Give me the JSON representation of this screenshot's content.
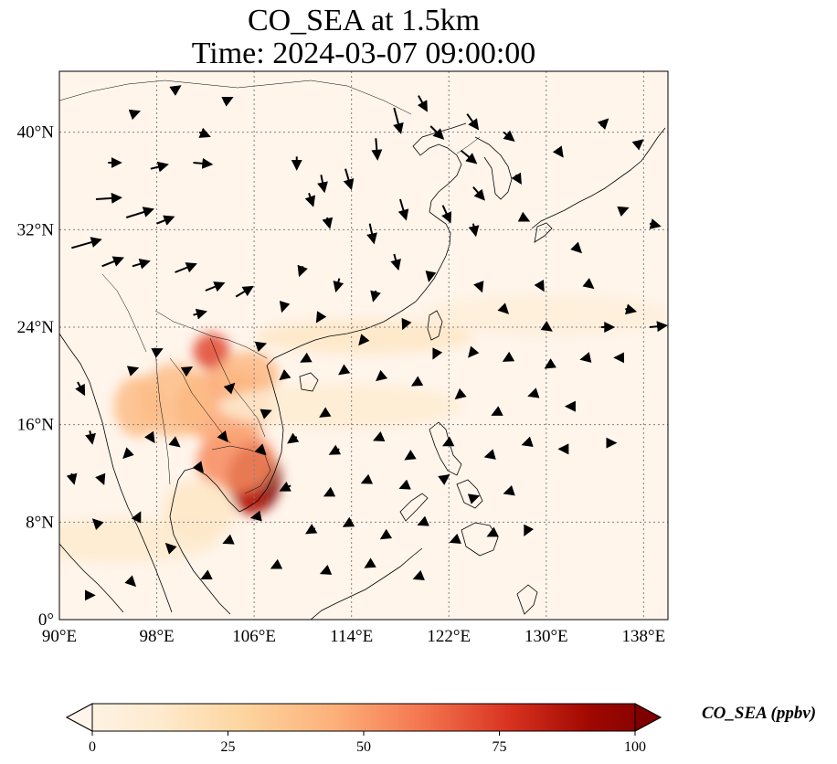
{
  "title": {
    "line1": "CO_SEA at 1.5km",
    "line2": "Time: 2024-03-07 09:00:00"
  },
  "map": {
    "projection": "PlateCarree",
    "lon_range": [
      90,
      140
    ],
    "lat_range": [
      0,
      45
    ],
    "x_ticks": [
      {
        "value": 90,
        "label": "90°E"
      },
      {
        "value": 98,
        "label": "98°E"
      },
      {
        "value": 106,
        "label": "106°E"
      },
      {
        "value": 114,
        "label": "114°E"
      },
      {
        "value": 122,
        "label": "122°E"
      },
      {
        "value": 130,
        "label": "130°E"
      },
      {
        "value": 138,
        "label": "138°E"
      }
    ],
    "y_ticks": [
      {
        "value": 0,
        "label": "0°"
      },
      {
        "value": 8,
        "label": "8°N"
      },
      {
        "value": 16,
        "label": "16°N"
      },
      {
        "value": 24,
        "label": "24°N"
      },
      {
        "value": 32,
        "label": "32°N"
      },
      {
        "value": 40,
        "label": "40°N"
      }
    ],
    "gridlines": "dotted grey",
    "background_color": "#fff5eb",
    "co_plumes": [
      {
        "name": "southern-vietnam-cambodia-core",
        "lon": 106.0,
        "lat": 11.5,
        "rx": 2.2,
        "ry": 2.8,
        "ppbv": 100
      },
      {
        "name": "mekong-delta",
        "lon": 105.6,
        "lat": 9.8,
        "rx": 1.2,
        "ry": 1.2,
        "ppbv": 80
      },
      {
        "name": "cambodia",
        "lon": 104.5,
        "lat": 13.0,
        "rx": 3.2,
        "ry": 2.6,
        "ppbv": 55
      },
      {
        "name": "laos-central",
        "lon": 103.5,
        "lat": 17.5,
        "rx": 4.0,
        "ry": 3.0,
        "ppbv": 48
      },
      {
        "name": "northern-laos",
        "lon": 102.5,
        "lat": 22.0,
        "rx": 1.5,
        "ry": 1.5,
        "ppbv": 70
      },
      {
        "name": "northern-thailand",
        "lon": 99.5,
        "lat": 18.0,
        "rx": 3.0,
        "ry": 3.0,
        "ppbv": 40
      },
      {
        "name": "myanmar-east",
        "lon": 96.5,
        "lat": 17.5,
        "rx": 2.0,
        "ry": 2.5,
        "ppbv": 40
      },
      {
        "name": "vietnam-north",
        "lon": 105.5,
        "lat": 20.0,
        "rx": 2.5,
        "ry": 2.0,
        "ppbv": 42
      },
      {
        "name": "south-china-coast-band",
        "lon": 115.0,
        "lat": 23.2,
        "rx": 9.0,
        "ry": 1.4,
        "ppbv": 18
      },
      {
        "name": "west-pacific-band",
        "lon": 130.0,
        "lat": 25.0,
        "rx": 10.0,
        "ry": 1.6,
        "ppbv": 10
      },
      {
        "name": "south-china-sea-band",
        "lon": 113.0,
        "lat": 17.5,
        "rx": 10.0,
        "ry": 1.8,
        "ppbv": 14
      },
      {
        "name": "andaman-band",
        "lon": 95.0,
        "lat": 6.5,
        "rx": 8.0,
        "ry": 1.8,
        "ppbv": 15
      },
      {
        "name": "gulf-of-thailand",
        "lon": 101.5,
        "lat": 9.0,
        "rx": 3.0,
        "ry": 2.5,
        "ppbv": 18
      }
    ],
    "wind_vectors": [
      {
        "lon": 91.0,
        "lat": 30.5,
        "u": 3.5,
        "v": 1.0
      },
      {
        "lon": 93.0,
        "lat": 34.5,
        "u": 3.0,
        "v": 0.2
      },
      {
        "lon": 95.5,
        "lat": 33.0,
        "u": 3.2,
        "v": 1.0
      },
      {
        "lon": 98.0,
        "lat": 32.5,
        "u": 2.0,
        "v": 0.8
      },
      {
        "lon": 93.5,
        "lat": 29.0,
        "u": 2.5,
        "v": 1.0
      },
      {
        "lon": 96.0,
        "lat": 29.0,
        "u": 2.0,
        "v": 0.6
      },
      {
        "lon": 99.5,
        "lat": 28.5,
        "u": 2.5,
        "v": 1.0
      },
      {
        "lon": 102.0,
        "lat": 27.0,
        "u": 2.2,
        "v": 0.9
      },
      {
        "lon": 104.5,
        "lat": 26.5,
        "u": 2.0,
        "v": 1.2
      },
      {
        "lon": 101.0,
        "lat": 25.0,
        "u": 1.5,
        "v": 0.4
      },
      {
        "lon": 94.0,
        "lat": 37.5,
        "u": 1.5,
        "v": 0.0
      },
      {
        "lon": 97.5,
        "lat": 37.0,
        "u": 2.0,
        "v": 0.5
      },
      {
        "lon": 101.0,
        "lat": 37.5,
        "u": 2.2,
        "v": -0.2
      },
      {
        "lon": 101.5,
        "lat": 40.0,
        "u": 1.2,
        "v": -0.5
      },
      {
        "lon": 96.0,
        "lat": 41.5,
        "u": 0.8,
        "v": 0.3
      },
      {
        "lon": 99.5,
        "lat": 43.5,
        "u": 0.6,
        "v": 0.4
      },
      {
        "lon": 103.5,
        "lat": 42.5,
        "u": 1.0,
        "v": 0.5
      },
      {
        "lon": 109.5,
        "lat": 38.0,
        "u": 0.0,
        "v": -1.5
      },
      {
        "lon": 111.5,
        "lat": 36.5,
        "u": 0.4,
        "v": -2.0
      },
      {
        "lon": 113.5,
        "lat": 37.0,
        "u": 0.7,
        "v": -2.4
      },
      {
        "lon": 116.0,
        "lat": 39.5,
        "u": 0.2,
        "v": -2.5
      },
      {
        "lon": 117.5,
        "lat": 42.0,
        "u": 0.8,
        "v": -3.0
      },
      {
        "lon": 119.5,
        "lat": 43.0,
        "u": 1.0,
        "v": -1.8
      },
      {
        "lon": 120.5,
        "lat": 40.5,
        "u": 1.5,
        "v": -1.5
      },
      {
        "lon": 123.0,
        "lat": 38.5,
        "u": 1.8,
        "v": -1.5
      },
      {
        "lon": 123.5,
        "lat": 41.5,
        "u": 1.3,
        "v": -1.8
      },
      {
        "lon": 126.5,
        "lat": 40.0,
        "u": 1.2,
        "v": -1.0
      },
      {
        "lon": 118.0,
        "lat": 34.5,
        "u": 0.7,
        "v": -2.4
      },
      {
        "lon": 115.5,
        "lat": 32.5,
        "u": 0.5,
        "v": -2.3
      },
      {
        "lon": 112.0,
        "lat": 33.0,
        "u": 0.3,
        "v": -1.2
      },
      {
        "lon": 110.5,
        "lat": 35.0,
        "u": 0.5,
        "v": -1.5
      },
      {
        "lon": 117.5,
        "lat": 30.0,
        "u": 0.5,
        "v": -1.8
      },
      {
        "lon": 121.5,
        "lat": 34.0,
        "u": 0.9,
        "v": -2.0
      },
      {
        "lon": 124.0,
        "lat": 35.5,
        "u": 1.3,
        "v": -1.5
      },
      {
        "lon": 124.0,
        "lat": 32.5,
        "u": 0.3,
        "v": -1.4
      },
      {
        "lon": 127.5,
        "lat": 36.5,
        "u": 0.6,
        "v": -1.0
      },
      {
        "lon": 131.0,
        "lat": 38.5,
        "u": 0.5,
        "v": -0.7
      },
      {
        "lon": 134.5,
        "lat": 40.5,
        "u": 0.8,
        "v": 0.8
      },
      {
        "lon": 137.5,
        "lat": 39.0,
        "u": 0.6,
        "v": 0.5
      },
      {
        "lon": 136.0,
        "lat": 33.5,
        "u": 1.0,
        "v": 0.4
      },
      {
        "lon": 138.5,
        "lat": 32.5,
        "u": 1.2,
        "v": -0.3
      },
      {
        "lon": 128.0,
        "lat": 33.0,
        "u": 0.8,
        "v": -0.4
      },
      {
        "lon": 132.5,
        "lat": 30.5,
        "u": 0.5,
        "v": -0.5
      },
      {
        "lon": 129.5,
        "lat": 27.5,
        "u": 0.4,
        "v": -0.7
      },
      {
        "lon": 133.5,
        "lat": 27.5,
        "u": 0.5,
        "v": -0.4
      },
      {
        "lon": 136.5,
        "lat": 25.5,
        "u": 1.2,
        "v": -0.3
      },
      {
        "lon": 138.5,
        "lat": 24.0,
        "u": 2.0,
        "v": 0.2
      },
      {
        "lon": 134.5,
        "lat": 24.0,
        "u": 1.5,
        "v": 0.0
      },
      {
        "lon": 130.0,
        "lat": 24.0,
        "u": 0.6,
        "v": -0.4
      },
      {
        "lon": 126.5,
        "lat": 25.5,
        "u": 0.5,
        "v": -0.5
      },
      {
        "lon": 124.5,
        "lat": 27.5,
        "u": 0.3,
        "v": -0.8
      },
      {
        "lon": 120.5,
        "lat": 28.5,
        "u": -0.2,
        "v": -1.0
      },
      {
        "lon": 116.0,
        "lat": 27.0,
        "u": -0.3,
        "v": -1.2
      },
      {
        "lon": 113.0,
        "lat": 28.0,
        "u": -0.4,
        "v": -1.5
      },
      {
        "lon": 110.0,
        "lat": 29.0,
        "u": -0.4,
        "v": -1.1
      },
      {
        "lon": 108.5,
        "lat": 26.0,
        "u": -0.3,
        "v": -1.0
      },
      {
        "lon": 111.5,
        "lat": 25.0,
        "u": -0.5,
        "v": -0.8
      },
      {
        "lon": 115.0,
        "lat": 23.0,
        "u": -0.5,
        "v": -0.6
      },
      {
        "lon": 118.5,
        "lat": 24.5,
        "u": -0.4,
        "v": -0.9
      },
      {
        "lon": 121.0,
        "lat": 22.0,
        "u": -0.4,
        "v": -0.8
      },
      {
        "lon": 124.0,
        "lat": 22.0,
        "u": -0.5,
        "v": -0.6
      },
      {
        "lon": 127.0,
        "lat": 21.5,
        "u": -0.7,
        "v": -0.4
      },
      {
        "lon": 130.5,
        "lat": 21.0,
        "u": -0.8,
        "v": -0.5
      },
      {
        "lon": 133.5,
        "lat": 21.5,
        "u": -0.9,
        "v": -0.2
      },
      {
        "lon": 136.0,
        "lat": 21.5,
        "u": -0.5,
        "v": 0.0
      },
      {
        "lon": 129.0,
        "lat": 18.5,
        "u": -0.6,
        "v": -0.2
      },
      {
        "lon": 132.0,
        "lat": 17.5,
        "u": -0.5,
        "v": 0.0
      },
      {
        "lon": 126.0,
        "lat": 17.0,
        "u": -0.6,
        "v": -0.3
      },
      {
        "lon": 123.0,
        "lat": 18.5,
        "u": -0.6,
        "v": -0.5
      },
      {
        "lon": 119.5,
        "lat": 19.5,
        "u": -0.7,
        "v": -0.4
      },
      {
        "lon": 116.5,
        "lat": 20.0,
        "u": -0.6,
        "v": -0.5
      },
      {
        "lon": 113.5,
        "lat": 20.5,
        "u": -0.7,
        "v": -0.5
      },
      {
        "lon": 110.5,
        "lat": 21.5,
        "u": -0.9,
        "v": -0.5
      },
      {
        "lon": 112.0,
        "lat": 17.0,
        "u": -0.8,
        "v": -0.5
      },
      {
        "lon": 109.5,
        "lat": 15.0,
        "u": -1.0,
        "v": -0.7
      },
      {
        "lon": 113.0,
        "lat": 14.0,
        "u": -1.1,
        "v": -0.6
      },
      {
        "lon": 116.5,
        "lat": 15.0,
        "u": -0.9,
        "v": -0.4
      },
      {
        "lon": 119.0,
        "lat": 13.5,
        "u": -0.8,
        "v": -0.5
      },
      {
        "lon": 122.0,
        "lat": 14.5,
        "u": -0.6,
        "v": -0.3
      },
      {
        "lon": 125.5,
        "lat": 13.5,
        "u": -0.7,
        "v": -0.2
      },
      {
        "lon": 128.5,
        "lat": 14.5,
        "u": -0.6,
        "v": -0.2
      },
      {
        "lon": 131.5,
        "lat": 14.0,
        "u": -0.6,
        "v": 0.0
      },
      {
        "lon": 135.0,
        "lat": 14.5,
        "u": 1.0,
        "v": 0.0
      },
      {
        "lon": 109.0,
        "lat": 11.0,
        "u": -1.2,
        "v": -0.6
      },
      {
        "lon": 112.5,
        "lat": 10.5,
        "u": -1.0,
        "v": -0.5
      },
      {
        "lon": 115.5,
        "lat": 11.5,
        "u": -0.9,
        "v": -0.4
      },
      {
        "lon": 118.5,
        "lat": 11.0,
        "u": -0.7,
        "v": -0.3
      },
      {
        "lon": 121.5,
        "lat": 11.5,
        "u": 0.7,
        "v": 0.5
      },
      {
        "lon": 124.0,
        "lat": 10.0,
        "u": 0.6,
        "v": 0.2
      },
      {
        "lon": 127.0,
        "lat": 10.5,
        "u": -0.6,
        "v": -0.2
      },
      {
        "lon": 111.0,
        "lat": 7.5,
        "u": -1.0,
        "v": -0.6
      },
      {
        "lon": 114.0,
        "lat": 8.0,
        "u": -0.9,
        "v": -0.5
      },
      {
        "lon": 117.0,
        "lat": 7.0,
        "u": -0.8,
        "v": -0.5
      },
      {
        "lon": 120.0,
        "lat": 8.0,
        "u": -0.7,
        "v": -0.3
      },
      {
        "lon": 122.5,
        "lat": 6.5,
        "u": -0.5,
        "v": -0.2
      },
      {
        "lon": 125.5,
        "lat": 7.0,
        "u": -0.4,
        "v": -0.2
      },
      {
        "lon": 128.5,
        "lat": 7.5,
        "u": -0.4,
        "v": -0.8
      },
      {
        "lon": 108.0,
        "lat": 4.5,
        "u": -0.8,
        "v": -0.4
      },
      {
        "lon": 112.0,
        "lat": 4.0,
        "u": -0.7,
        "v": -0.3
      },
      {
        "lon": 115.5,
        "lat": 4.5,
        "u": -0.5,
        "v": -0.3
      },
      {
        "lon": 119.5,
        "lat": 3.5,
        "u": -0.5,
        "v": -0.2
      },
      {
        "lon": 104.0,
        "lat": 6.5,
        "u": -0.7,
        "v": -0.3
      },
      {
        "lon": 106.5,
        "lat": 8.5,
        "u": -1.0,
        "v": -0.2
      },
      {
        "lon": 102.0,
        "lat": 3.5,
        "u": -0.4,
        "v": -0.2
      },
      {
        "lon": 99.0,
        "lat": 6.0,
        "u": -0.3,
        "v": 0.3
      },
      {
        "lon": 96.5,
        "lat": 8.5,
        "u": 0.2,
        "v": 0.4
      },
      {
        "lon": 93.0,
        "lat": 8.0,
        "u": -0.3,
        "v": 0.3
      },
      {
        "lon": 92.5,
        "lat": 2.0,
        "u": 0.5,
        "v": 0.0
      },
      {
        "lon": 96.0,
        "lat": 3.0,
        "u": 0.3,
        "v": -0.3
      },
      {
        "lon": 91.0,
        "lat": 12.0,
        "u": 0.3,
        "v": -1.2
      },
      {
        "lon": 92.5,
        "lat": 15.5,
        "u": 0.3,
        "v": -1.5
      },
      {
        "lon": 91.5,
        "lat": 19.5,
        "u": 0.8,
        "v": -1.5
      },
      {
        "lon": 93.5,
        "lat": 11.5,
        "u": 0.2,
        "v": -0.5
      },
      {
        "lon": 95.5,
        "lat": 13.5,
        "u": -0.3,
        "v": -0.3
      },
      {
        "lon": 97.5,
        "lat": 15.0,
        "u": 0.4,
        "v": -0.6
      },
      {
        "lon": 99.5,
        "lat": 14.5,
        "u": 0.5,
        "v": -0.4
      },
      {
        "lon": 101.5,
        "lat": 12.5,
        "u": 0.4,
        "v": -0.5
      },
      {
        "lon": 103.5,
        "lat": 15.0,
        "u": 0.4,
        "v": -0.5
      },
      {
        "lon": 106.5,
        "lat": 14.0,
        "u": 0.6,
        "v": -0.6
      },
      {
        "lon": 96.0,
        "lat": 20.5,
        "u": 0.6,
        "v": 0.2
      },
      {
        "lon": 98.0,
        "lat": 22.0,
        "u": 0.6,
        "v": 0.3
      },
      {
        "lon": 100.5,
        "lat": 20.5,
        "u": 0.5,
        "v": 0.3
      },
      {
        "lon": 104.0,
        "lat": 19.0,
        "u": 0.5,
        "v": 0.5
      },
      {
        "lon": 106.5,
        "lat": 22.5,
        "u": 0.6,
        "v": 0.2
      },
      {
        "lon": 108.5,
        "lat": 20.0,
        "u": -0.5,
        "v": -0.4
      },
      {
        "lon": 107.0,
        "lat": 17.0,
        "u": 0.5,
        "v": 0.2
      }
    ]
  },
  "colorbar": {
    "label": "CO_SEA (ppbv)",
    "range": [
      0,
      100
    ],
    "extend": "both",
    "colormap": "OrRd",
    "ticks": [
      {
        "value": 0,
        "label": "0"
      },
      {
        "value": 25,
        "label": "25"
      },
      {
        "value": 50,
        "label": "50"
      },
      {
        "value": 75,
        "label": "75"
      },
      {
        "value": 100,
        "label": "100"
      }
    ],
    "colors": {
      "low": "#fff5eb",
      "q1": "#fdd49e",
      "mid": "#fc8d59",
      "q3": "#d7301f",
      "high": "#7f0000"
    }
  }
}
